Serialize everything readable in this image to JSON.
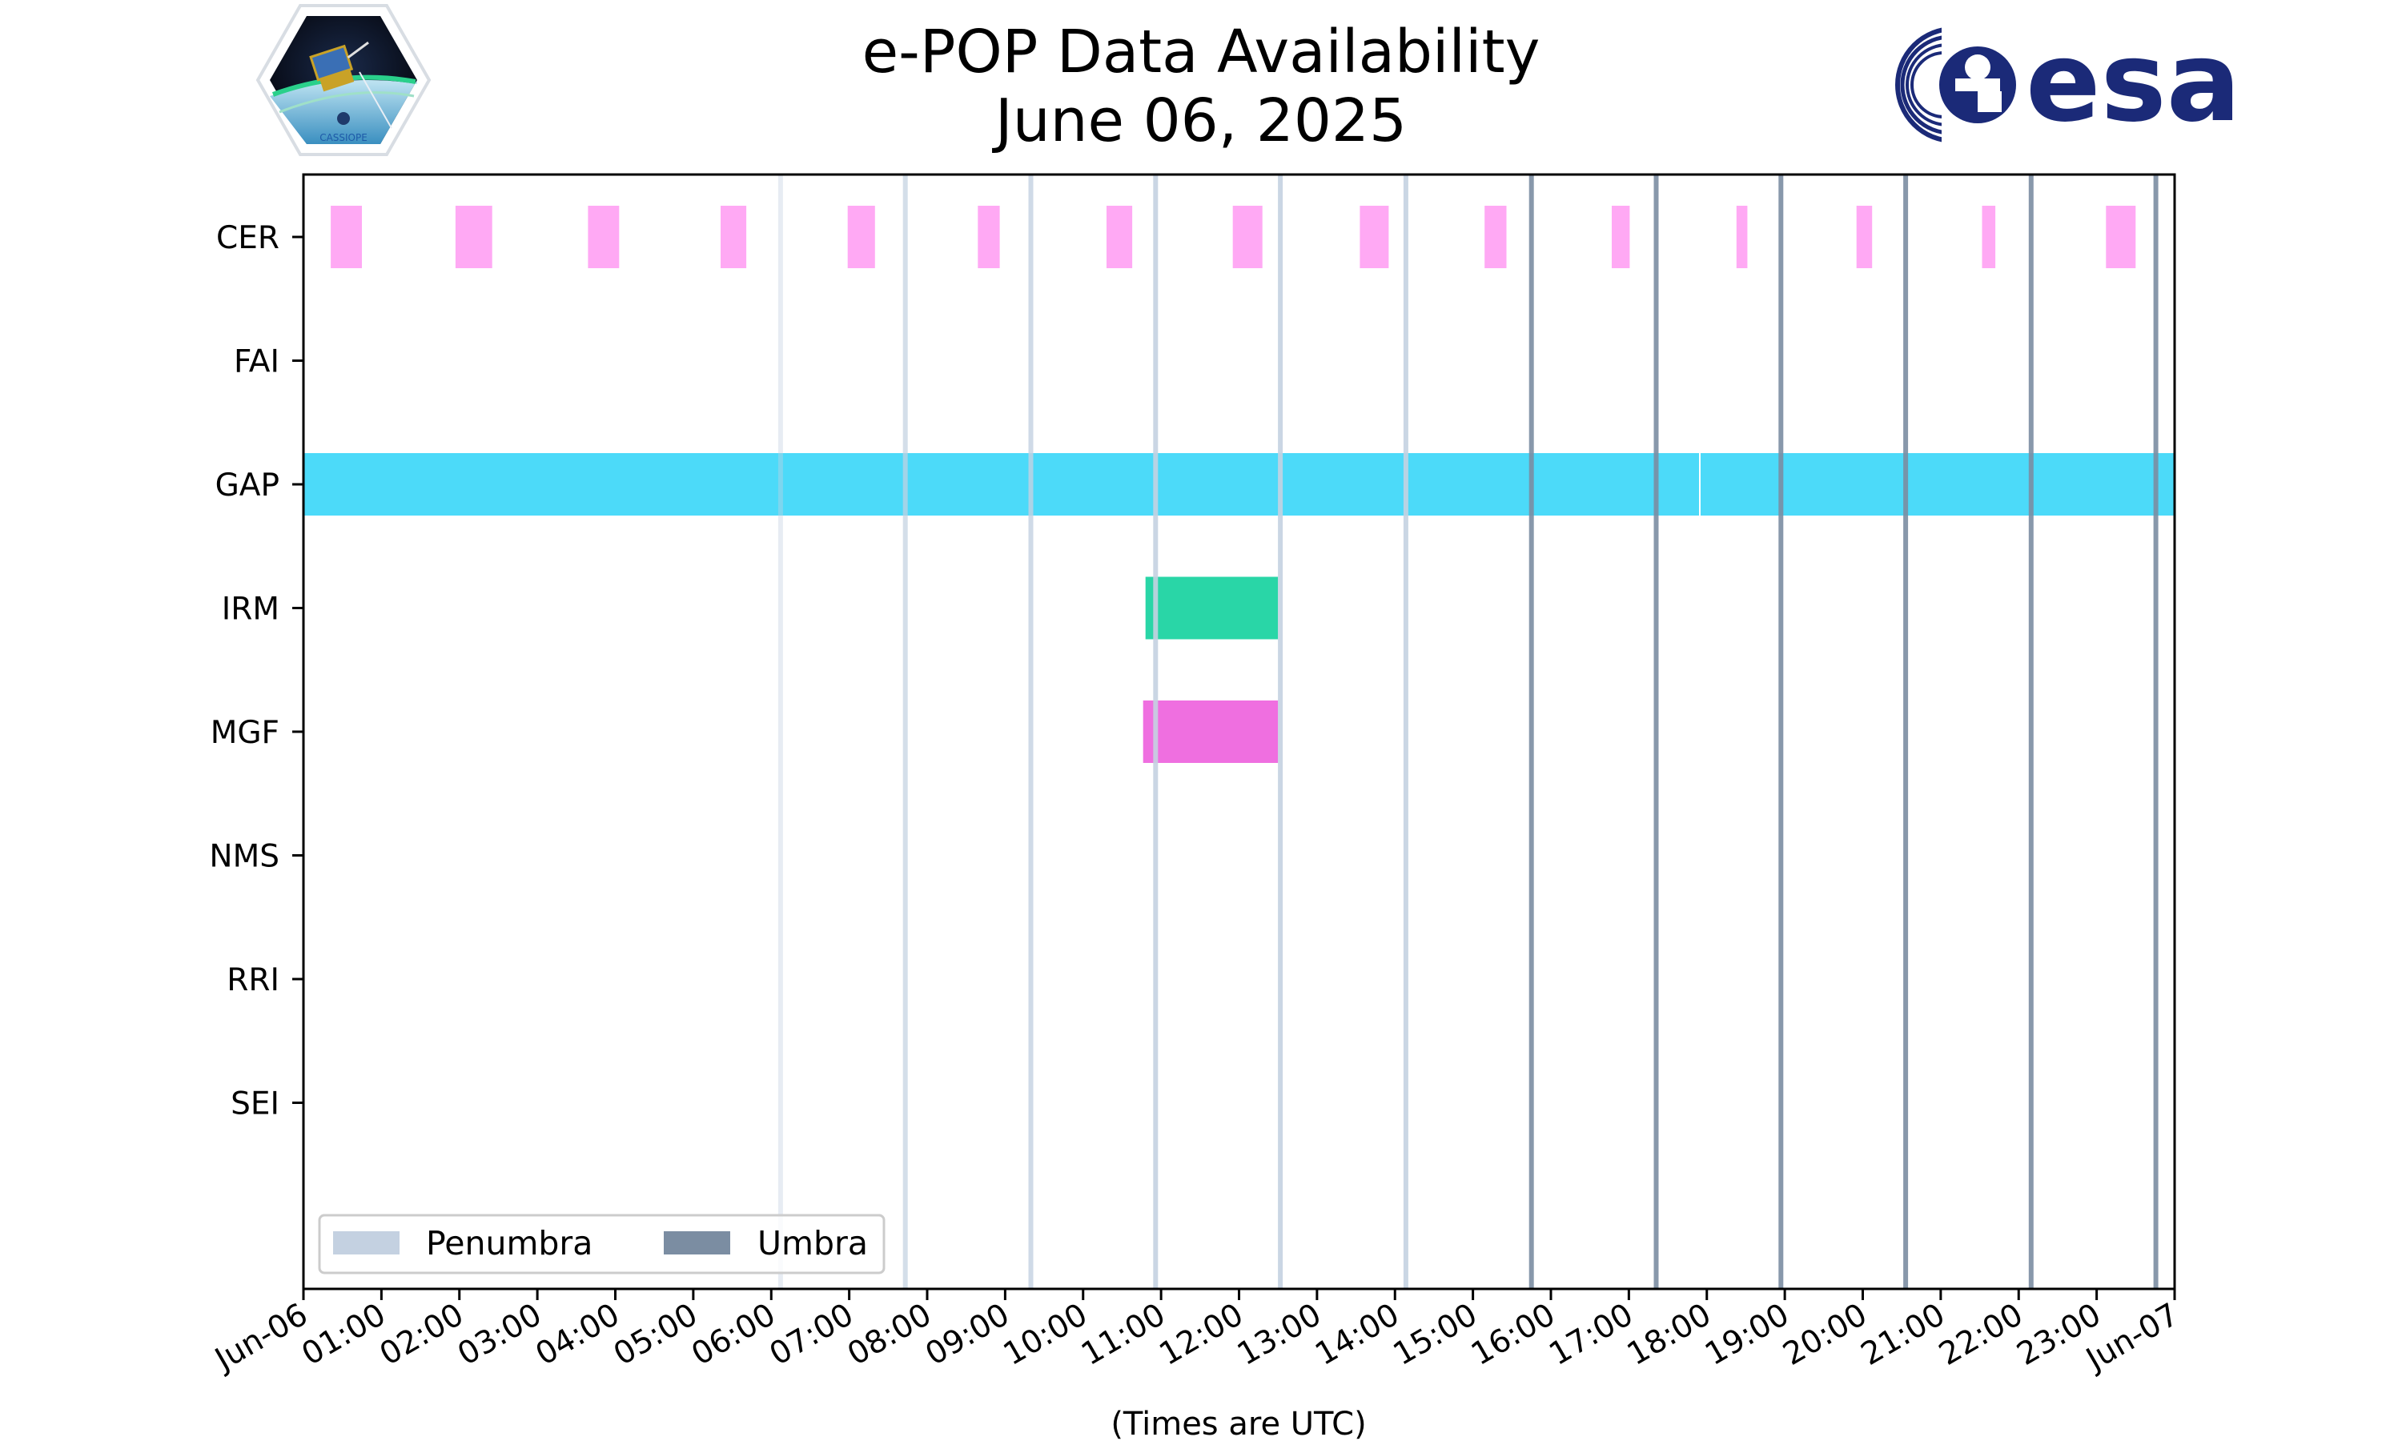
{
  "header": {
    "title_line1": "e-POP Data Availability",
    "title_line2": "June 06, 2025",
    "left_logo": {
      "name": "CASSIOPE mission patch",
      "caption": "CASSIOPE"
    },
    "right_logo": {
      "name": "ESA logo",
      "wordmark": "esa",
      "color": "#1b2a78"
    }
  },
  "chart_data": {
    "type": "timeline",
    "title": "e-POP Data Availability June 06, 2025",
    "xlabel": "(Times are UTC)",
    "xlim_hours": [
      0,
      24
    ],
    "x_tick_labels": [
      "Jun-06",
      "01:00",
      "02:00",
      "03:00",
      "04:00",
      "05:00",
      "06:00",
      "07:00",
      "08:00",
      "09:00",
      "10:00",
      "11:00",
      "12:00",
      "13:00",
      "14:00",
      "15:00",
      "16:00",
      "17:00",
      "18:00",
      "19:00",
      "20:00",
      "21:00",
      "22:00",
      "23:00",
      "Jun-07"
    ],
    "instruments": [
      "CER",
      "FAI",
      "GAP",
      "IRM",
      "MGF",
      "NMS",
      "RRI",
      "SEI"
    ],
    "colors": {
      "CER": "#ffa9f4",
      "GAP": "#4cdaf9",
      "IRM": "#29d6a7",
      "MGF": "#ef6fe0",
      "penumbra": "#c4d1e1",
      "umbra": "#7b8da2"
    },
    "segments": [
      {
        "instrument": "CER",
        "start": 0.35,
        "end": 0.75
      },
      {
        "instrument": "CER",
        "start": 1.95,
        "end": 2.42
      },
      {
        "instrument": "CER",
        "start": 3.65,
        "end": 4.05
      },
      {
        "instrument": "CER",
        "start": 5.35,
        "end": 5.68
      },
      {
        "instrument": "CER",
        "start": 6.98,
        "end": 7.33
      },
      {
        "instrument": "CER",
        "start": 8.65,
        "end": 8.93
      },
      {
        "instrument": "CER",
        "start": 10.3,
        "end": 10.63
      },
      {
        "instrument": "CER",
        "start": 11.92,
        "end": 12.3
      },
      {
        "instrument": "CER",
        "start": 13.55,
        "end": 13.92
      },
      {
        "instrument": "CER",
        "start": 15.15,
        "end": 15.43
      },
      {
        "instrument": "CER",
        "start": 16.78,
        "end": 17.01
      },
      {
        "instrument": "CER",
        "start": 18.38,
        "end": 18.52
      },
      {
        "instrument": "CER",
        "start": 19.92,
        "end": 20.12
      },
      {
        "instrument": "CER",
        "start": 21.53,
        "end": 21.7
      },
      {
        "instrument": "CER",
        "start": 23.12,
        "end": 23.5
      },
      {
        "instrument": "GAP",
        "start": 0.0,
        "end": 17.9
      },
      {
        "instrument": "GAP",
        "start": 17.92,
        "end": 24.0
      },
      {
        "instrument": "IRM",
        "start": 10.8,
        "end": 12.5
      },
      {
        "instrument": "MGF",
        "start": 10.77,
        "end": 12.5
      }
    ],
    "eclipse_events": [
      {
        "time": 6.12,
        "type": "penumbra",
        "intensity": 0.45
      },
      {
        "time": 7.72,
        "type": "penumbra",
        "intensity": 0.8
      },
      {
        "time": 9.33,
        "type": "penumbra",
        "intensity": 0.9
      },
      {
        "time": 10.93,
        "type": "penumbra",
        "intensity": 1.0
      },
      {
        "time": 12.53,
        "type": "penumbra",
        "intensity": 1.0
      },
      {
        "time": 14.14,
        "type": "penumbra",
        "intensity": 1.0
      },
      {
        "time": 15.75,
        "type": "umbra",
        "intensity": 1.0
      },
      {
        "time": 17.35,
        "type": "umbra",
        "intensity": 1.0
      },
      {
        "time": 18.95,
        "type": "umbra",
        "intensity": 1.0
      },
      {
        "time": 20.55,
        "type": "umbra",
        "intensity": 1.0
      },
      {
        "time": 22.16,
        "type": "umbra",
        "intensity": 1.0
      },
      {
        "time": 23.76,
        "type": "umbra",
        "intensity": 1.0
      }
    ],
    "legend": {
      "position": "lower-left",
      "entries": [
        {
          "label": "Penumbra",
          "color_key": "penumbra"
        },
        {
          "label": "Umbra",
          "color_key": "umbra"
        }
      ]
    }
  }
}
